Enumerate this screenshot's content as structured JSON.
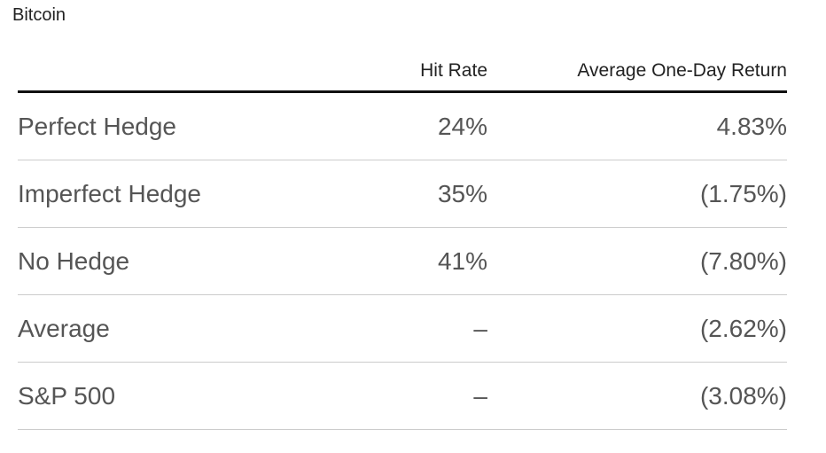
{
  "title": "Bitcoin",
  "table": {
    "headers": [
      "Hit Rate",
      "Average One-Day Return"
    ],
    "rows": [
      [
        "Perfect Hedge",
        "24%",
        "4.83%"
      ],
      [
        "Imperfect Hedge",
        "35%",
        "(1.75%)"
      ],
      [
        "No Hedge",
        "41%",
        "(7.80%)"
      ],
      [
        "Average",
        "–",
        "(2.62%)"
      ],
      [
        "S&P 500",
        "–",
        "(3.08%)"
      ]
    ]
  }
}
